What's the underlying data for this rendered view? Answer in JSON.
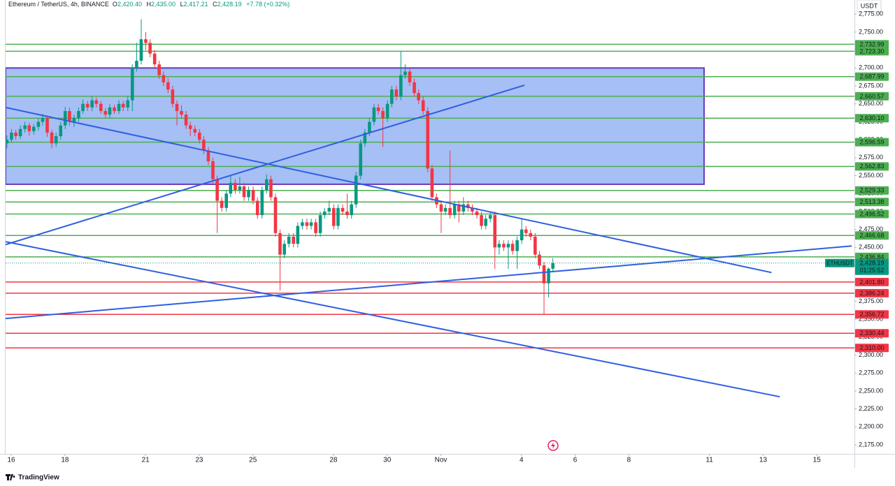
{
  "chart_data": {
    "type": "candlestick",
    "header": {
      "title": "Ethereum / TetherUS, 4h, BINANCE",
      "o_label": "O",
      "o": "2,420.40",
      "h_label": "H",
      "h": "2,435.00",
      "l_label": "L",
      "l": "2,417.21",
      "c_label": "C",
      "c": "2,428.19",
      "change": "+7.78 (+0.32%)"
    },
    "currency": "USDT",
    "brand": "TradingView",
    "up_color": "#089981",
    "down_color": "#f23645",
    "xlim": [
      -0.21,
      31.4
    ],
    "ylim": [
      2162.4,
      2794.7
    ],
    "grid": false,
    "xticks": [
      {
        "value": 0,
        "label": "16"
      },
      {
        "value": 2,
        "label": "18"
      },
      {
        "value": 5,
        "label": "21"
      },
      {
        "value": 7,
        "label": "23"
      },
      {
        "value": 9,
        "label": "25"
      },
      {
        "value": 12,
        "label": "28"
      },
      {
        "value": 14,
        "label": "30"
      },
      {
        "value": 16,
        "label": "Nov"
      },
      {
        "value": 19,
        "label": "4"
      },
      {
        "value": 21,
        "label": "6"
      },
      {
        "value": 23,
        "label": "8"
      },
      {
        "value": 26,
        "label": "11"
      },
      {
        "value": 28,
        "label": "13"
      },
      {
        "value": 30,
        "label": "15"
      }
    ],
    "yticks": [
      {
        "value": 2175,
        "label": "2,175.00"
      },
      {
        "value": 2200,
        "label": "2,200.00"
      },
      {
        "value": 2225,
        "label": "2,225.00"
      },
      {
        "value": 2250,
        "label": "2,250.00"
      },
      {
        "value": 2275,
        "label": "2,275.00"
      },
      {
        "value": 2300,
        "label": "2,300.00"
      },
      {
        "value": 2325,
        "label": "2,325.00"
      },
      {
        "value": 2350,
        "label": "2,350.00"
      },
      {
        "value": 2375,
        "label": "2,375.00"
      },
      {
        "value": 2400,
        "label": "2,400.00"
      },
      {
        "value": 2425,
        "label": "2,425.00"
      },
      {
        "value": 2450,
        "label": "2,450.00"
      },
      {
        "value": 2475,
        "label": "2,475.00"
      },
      {
        "value": 2500,
        "label": "2,500.00"
      },
      {
        "value": 2525,
        "label": "2,525.00"
      },
      {
        "value": 2550,
        "label": "2,550.00"
      },
      {
        "value": 2575,
        "label": "2,575.00"
      },
      {
        "value": 2600,
        "label": "2,600.00"
      },
      {
        "value": 2625,
        "label": "2,625.00"
      },
      {
        "value": 2650,
        "label": "2,650.00"
      },
      {
        "value": 2675,
        "label": "2,675.00"
      },
      {
        "value": 2700,
        "label": "2,700.00"
      },
      {
        "value": 2725,
        "label": "2,725.00"
      },
      {
        "value": 2750,
        "label": "2,750.00"
      },
      {
        "value": 2775,
        "label": "2,775.00"
      }
    ],
    "x": [
      -0.16,
      0.01,
      0.17,
      0.34,
      0.51,
      0.67,
      0.84,
      1.01,
      1.17,
      1.34,
      1.51,
      1.67,
      1.84,
      2.01,
      2.17,
      2.34,
      2.51,
      2.67,
      2.84,
      3.01,
      3.17,
      3.34,
      3.51,
      3.67,
      3.84,
      4.01,
      4.17,
      4.34,
      4.51,
      4.67,
      4.84,
      5.01,
      5.17,
      5.34,
      5.51,
      5.67,
      5.84,
      6.01,
      6.17,
      6.34,
      6.51,
      6.67,
      6.84,
      7.01,
      7.17,
      7.34,
      7.51,
      7.67,
      7.84,
      8.01,
      8.17,
      8.34,
      8.51,
      8.67,
      8.84,
      9.01,
      9.17,
      9.34,
      9.51,
      9.67,
      9.84,
      10.01,
      10.17,
      10.34,
      10.51,
      10.67,
      10.84,
      11.01,
      11.17,
      11.34,
      11.51,
      11.67,
      11.84,
      12.01,
      12.17,
      12.34,
      12.51,
      12.67,
      12.84,
      13.01,
      13.17,
      13.34,
      13.51,
      13.67,
      13.84,
      14.01,
      14.17,
      14.34,
      14.51,
      14.67,
      14.84,
      15.01,
      15.17,
      15.34,
      15.51,
      15.67,
      15.84,
      16.01,
      16.17,
      16.34,
      16.51,
      16.67,
      16.84,
      17.01,
      17.17,
      17.34,
      17.51,
      17.67,
      17.84,
      18.01,
      18.17,
      18.34,
      18.51,
      18.67,
      18.84,
      19.01,
      19.17,
      19.34,
      19.51,
      19.67,
      19.84,
      20.01,
      20.17
    ],
    "ohlc": [
      [
        2595,
        2606,
        2588,
        2600
      ],
      [
        2600,
        2615,
        2596,
        2610
      ],
      [
        2610,
        2614,
        2600,
        2605
      ],
      [
        2605,
        2620,
        2601,
        2615
      ],
      [
        2615,
        2625,
        2610,
        2620
      ],
      [
        2620,
        2624,
        2606,
        2612
      ],
      [
        2612,
        2622,
        2607,
        2618
      ],
      [
        2618,
        2630,
        2613,
        2625
      ],
      [
        2625,
        2636,
        2620,
        2630
      ],
      [
        2630,
        2634,
        2604,
        2610
      ],
      [
        2610,
        2614,
        2588,
        2595
      ],
      [
        2595,
        2610,
        2590,
        2605
      ],
      [
        2605,
        2625,
        2600,
        2620
      ],
      [
        2620,
        2646,
        2615,
        2640
      ],
      [
        2640,
        2645,
        2620,
        2625
      ],
      [
        2625,
        2635,
        2618,
        2630
      ],
      [
        2630,
        2645,
        2625,
        2640
      ],
      [
        2640,
        2656,
        2636,
        2650
      ],
      [
        2650,
        2654,
        2640,
        2645
      ],
      [
        2645,
        2660,
        2640,
        2655
      ],
      [
        2655,
        2659,
        2645,
        2650
      ],
      [
        2650,
        2654,
        2636,
        2640
      ],
      [
        2640,
        2644,
        2630,
        2635
      ],
      [
        2635,
        2650,
        2630,
        2645
      ],
      [
        2645,
        2649,
        2636,
        2640
      ],
      [
        2640,
        2655,
        2636,
        2650
      ],
      [
        2650,
        2654,
        2640,
        2645
      ],
      [
        2645,
        2660,
        2640,
        2655
      ],
      [
        2655,
        2705,
        2640,
        2700
      ],
      [
        2700,
        2735,
        2695,
        2710
      ],
      [
        2710,
        2768,
        2705,
        2740
      ],
      [
        2740,
        2750,
        2725,
        2735
      ],
      [
        2735,
        2740,
        2715,
        2720
      ],
      [
        2720,
        2725,
        2700,
        2705
      ],
      [
        2705,
        2710,
        2685,
        2690
      ],
      [
        2690,
        2695,
        2675,
        2680
      ],
      [
        2680,
        2686,
        2665,
        2670
      ],
      [
        2670,
        2675,
        2645,
        2650
      ],
      [
        2650,
        2655,
        2620,
        2640
      ],
      [
        2640,
        2648,
        2630,
        2635
      ],
      [
        2635,
        2640,
        2615,
        2620
      ],
      [
        2620,
        2625,
        2605,
        2615
      ],
      [
        2615,
        2620,
        2605,
        2610
      ],
      [
        2610,
        2615,
        2595,
        2600
      ],
      [
        2600,
        2605,
        2580,
        2585
      ],
      [
        2585,
        2590,
        2565,
        2570
      ],
      [
        2570,
        2575,
        2540,
        2545
      ],
      [
        2545,
        2550,
        2470,
        2515
      ],
      [
        2515,
        2520,
        2500,
        2505
      ],
      [
        2505,
        2530,
        2500,
        2525
      ],
      [
        2525,
        2550,
        2520,
        2540
      ],
      [
        2540,
        2545,
        2525,
        2530
      ],
      [
        2530,
        2548,
        2525,
        2535
      ],
      [
        2535,
        2540,
        2515,
        2520
      ],
      [
        2520,
        2535,
        2515,
        2530
      ],
      [
        2530,
        2535,
        2510,
        2515
      ],
      [
        2515,
        2520,
        2490,
        2495
      ],
      [
        2495,
        2535,
        2490,
        2530
      ],
      [
        2530,
        2552,
        2525,
        2545
      ],
      [
        2545,
        2550,
        2515,
        2520
      ],
      [
        2520,
        2525,
        2465,
        2470
      ],
      [
        2470,
        2475,
        2390,
        2440
      ],
      [
        2440,
        2460,
        2435,
        2455
      ],
      [
        2455,
        2470,
        2450,
        2465
      ],
      [
        2465,
        2470,
        2450,
        2455
      ],
      [
        2455,
        2485,
        2450,
        2480
      ],
      [
        2480,
        2490,
        2475,
        2485
      ],
      [
        2485,
        2490,
        2475,
        2480
      ],
      [
        2480,
        2490,
        2475,
        2485
      ],
      [
        2485,
        2490,
        2465,
        2470
      ],
      [
        2470,
        2500,
        2465,
        2495
      ],
      [
        2495,
        2505,
        2490,
        2500
      ],
      [
        2500,
        2515,
        2495,
        2505
      ],
      [
        2505,
        2510,
        2475,
        2480
      ],
      [
        2480,
        2510,
        2475,
        2505
      ],
      [
        2505,
        2510,
        2495,
        2500
      ],
      [
        2500,
        2525,
        2490,
        2495
      ],
      [
        2495,
        2515,
        2490,
        2510
      ],
      [
        2510,
        2555,
        2505,
        2550
      ],
      [
        2550,
        2600,
        2545,
        2595
      ],
      [
        2595,
        2615,
        2590,
        2610
      ],
      [
        2610,
        2630,
        2605,
        2625
      ],
      [
        2625,
        2650,
        2620,
        2645
      ],
      [
        2645,
        2650,
        2635,
        2640
      ],
      [
        2640,
        2645,
        2590,
        2630
      ],
      [
        2630,
        2655,
        2625,
        2650
      ],
      [
        2650,
        2675,
        2645,
        2670
      ],
      [
        2670,
        2675,
        2655,
        2660
      ],
      [
        2660,
        2723,
        2655,
        2690
      ],
      [
        2690,
        2705,
        2685,
        2695
      ],
      [
        2695,
        2700,
        2675,
        2680
      ],
      [
        2680,
        2685,
        2660,
        2665
      ],
      [
        2665,
        2670,
        2650,
        2655
      ],
      [
        2655,
        2660,
        2635,
        2640
      ],
      [
        2640,
        2645,
        2555,
        2560
      ],
      [
        2560,
        2565,
        2515,
        2520
      ],
      [
        2520,
        2525,
        2505,
        2510
      ],
      [
        2510,
        2515,
        2470,
        2500
      ],
      [
        2500,
        2510,
        2495,
        2505
      ],
      [
        2505,
        2585,
        2490,
        2495
      ],
      [
        2495,
        2515,
        2490,
        2510
      ],
      [
        2510,
        2515,
        2485,
        2500
      ],
      [
        2500,
        2520,
        2495,
        2510
      ],
      [
        2510,
        2515,
        2500,
        2505
      ],
      [
        2505,
        2510,
        2495,
        2500
      ],
      [
        2500,
        2505,
        2490,
        2495
      ],
      [
        2495,
        2500,
        2475,
        2480
      ],
      [
        2480,
        2495,
        2475,
        2490
      ],
      [
        2490,
        2500,
        2485,
        2495
      ],
      [
        2495,
        2500,
        2420,
        2450
      ],
      [
        2450,
        2460,
        2440,
        2455
      ],
      [
        2455,
        2460,
        2445,
        2450
      ],
      [
        2450,
        2460,
        2420,
        2455
      ],
      [
        2455,
        2460,
        2440,
        2445
      ],
      [
        2445,
        2465,
        2420,
        2460
      ],
      [
        2460,
        2490,
        2455,
        2475
      ],
      [
        2475,
        2480,
        2465,
        2470
      ],
      [
        2470,
        2475,
        2460,
        2465
      ],
      [
        2465,
        2470,
        2435,
        2440
      ],
      [
        2440,
        2445,
        2420,
        2425
      ],
      [
        2425,
        2430,
        2356,
        2400
      ],
      [
        2400,
        2422,
        2380,
        2420.4
      ],
      [
        2420.4,
        2435,
        2417.21,
        2428.19
      ]
    ],
    "zone": {
      "x": [
        -0.21,
        25.8
      ],
      "y": [
        2538,
        2700
      ],
      "fill": "#a6bff5",
      "stroke": "#673ab7"
    },
    "trendlines": [
      {
        "x": [
          -0.21,
          28.31
        ],
        "y": [
          2645,
          2415
        ]
      },
      {
        "x": [
          -0.21,
          28.62
        ],
        "y": [
          2458,
          2242
        ]
      },
      {
        "x": [
          -0.21,
          31.3
        ],
        "y": [
          2351,
          2452
        ]
      },
      {
        "x": [
          -0.21,
          19.11
        ],
        "y": [
          2454,
          2676
        ]
      }
    ],
    "trendline_color": "#2f5fe0",
    "levels": [
      {
        "value": 2732.99,
        "label": "2,732.99",
        "color": "#4caf50"
      },
      {
        "value": 2723.3,
        "label": "2,723.30",
        "color": "#4caf50"
      },
      {
        "value": 2687.99,
        "label": "2,687.99",
        "color": "#4caf50"
      },
      {
        "value": 2660.57,
        "label": "2,660.57",
        "color": "#4caf50"
      },
      {
        "value": 2630.1,
        "label": "2,630.10",
        "color": "#4caf50"
      },
      {
        "value": 2596.59,
        "label": "2,596.59",
        "color": "#4caf50"
      },
      {
        "value": 2562.83,
        "label": "2,562.83",
        "color": "#4caf50"
      },
      {
        "value": 2529.33,
        "label": "2,529.33",
        "color": "#4caf50"
      },
      {
        "value": 2513.38,
        "label": "2,513.38",
        "color": "#4caf50"
      },
      {
        "value": 2496.52,
        "label": "2,496.52",
        "color": "#4caf50"
      },
      {
        "value": 2466.68,
        "label": "2,466.68",
        "color": "#4caf50"
      },
      {
        "value": 2436.84,
        "label": "2,436.84",
        "color": "#4caf50"
      },
      {
        "value": 2401.8,
        "label": "2,401.80",
        "color": "#f23645"
      },
      {
        "value": 2386.24,
        "label": "2,386.24",
        "color": "#f23645"
      },
      {
        "value": 2356.72,
        "label": "2,356.72",
        "color": "#f23645"
      },
      {
        "value": 2330.44,
        "label": "2,330.44",
        "color": "#f23645"
      },
      {
        "value": 2310.0,
        "label": "2,310.00",
        "color": "#f23645"
      }
    ],
    "current": {
      "symbol": "ETHUSDT",
      "value": 2428.19,
      "label": "2,428.19",
      "countdown": "01:25:52",
      "color": "#089981"
    }
  }
}
